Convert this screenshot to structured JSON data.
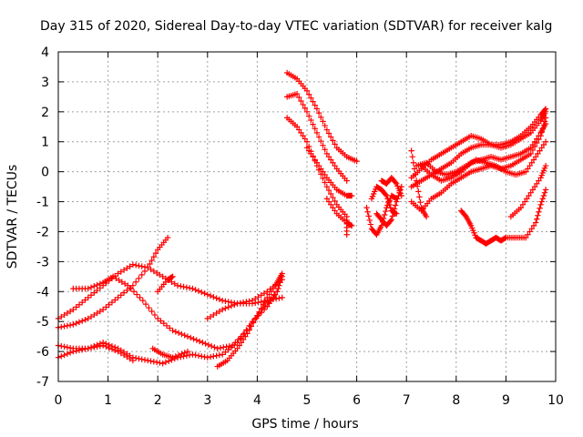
{
  "chart_data": {
    "type": "scatter",
    "title": "Day 315 of 2020, Sidereal Day-to-day VTEC variation (SDTVAR) for receiver kalg",
    "xlabel": "GPS time / hours",
    "ylabel": "SDTVAR / TECUs",
    "xlim": [
      0,
      10
    ],
    "ylim": [
      -7,
      4
    ],
    "xticks": [
      "0",
      "1",
      "2",
      "3",
      "4",
      "5",
      "6",
      "7",
      "8",
      "9",
      "10"
    ],
    "yticks": [
      "-7",
      "-6",
      "-5",
      "-4",
      "-3",
      "-2",
      "-1",
      "0",
      "1",
      "2",
      "3",
      "4"
    ],
    "grid": true,
    "marker": "+",
    "color": "#ff0000",
    "series": [
      {
        "name": "t1",
        "points": [
          [
            0.0,
            -4.9
          ],
          [
            0.3,
            -4.6
          ],
          [
            0.6,
            -4.2
          ],
          [
            0.9,
            -3.8
          ],
          [
            1.2,
            -3.4
          ],
          [
            1.5,
            -3.1
          ],
          [
            1.8,
            -3.2
          ],
          [
            2.1,
            -3.5
          ],
          [
            2.4,
            -3.8
          ],
          [
            2.7,
            -3.9
          ],
          [
            3.0,
            -4.1
          ],
          [
            3.3,
            -4.3
          ],
          [
            3.6,
            -4.4
          ],
          [
            3.9,
            -4.4
          ],
          [
            4.2,
            -4.3
          ],
          [
            4.5,
            -4.2
          ]
        ]
      },
      {
        "name": "t2",
        "points": [
          [
            0.0,
            -5.2
          ],
          [
            0.3,
            -5.1
          ],
          [
            0.6,
            -4.9
          ],
          [
            0.9,
            -4.6
          ],
          [
            1.2,
            -4.2
          ],
          [
            1.5,
            -3.8
          ],
          [
            1.8,
            -3.2
          ],
          [
            2.0,
            -2.6
          ],
          [
            2.2,
            -2.2
          ]
        ]
      },
      {
        "name": "t3",
        "points": [
          [
            0.3,
            -3.9
          ],
          [
            0.6,
            -3.9
          ],
          [
            0.9,
            -3.7
          ],
          [
            1.1,
            -3.5
          ],
          [
            1.4,
            -3.8
          ],
          [
            1.7,
            -4.3
          ],
          [
            2.0,
            -4.9
          ],
          [
            2.3,
            -5.3
          ],
          [
            2.6,
            -5.5
          ],
          [
            2.9,
            -5.7
          ],
          [
            3.2,
            -5.9
          ],
          [
            3.5,
            -5.8
          ],
          [
            3.8,
            -5.3
          ],
          [
            4.1,
            -4.6
          ],
          [
            4.4,
            -4.0
          ],
          [
            4.5,
            -3.5
          ]
        ]
      },
      {
        "name": "t4",
        "points": [
          [
            0.0,
            -5.8
          ],
          [
            0.3,
            -5.9
          ],
          [
            0.6,
            -5.9
          ],
          [
            0.9,
            -5.7
          ],
          [
            1.2,
            -5.9
          ],
          [
            1.5,
            -6.2
          ],
          [
            1.8,
            -6.3
          ],
          [
            2.1,
            -6.4
          ],
          [
            2.4,
            -6.2
          ],
          [
            2.7,
            -6.1
          ],
          [
            3.0,
            -6.2
          ],
          [
            3.3,
            -6.1
          ],
          [
            3.6,
            -5.7
          ],
          [
            3.9,
            -5.0
          ],
          [
            4.2,
            -4.5
          ],
          [
            4.4,
            -4.0
          ]
        ]
      },
      {
        "name": "t5",
        "points": [
          [
            0.0,
            -6.2
          ],
          [
            0.3,
            -6.0
          ],
          [
            0.6,
            -5.9
          ],
          [
            0.9,
            -5.8
          ],
          [
            1.2,
            -6.0
          ],
          [
            1.5,
            -6.3
          ]
        ]
      },
      {
        "name": "t6",
        "points": [
          [
            1.9,
            -5.9
          ],
          [
            2.1,
            -6.1
          ],
          [
            2.3,
            -6.2
          ],
          [
            2.6,
            -6.0
          ]
        ]
      },
      {
        "name": "t7",
        "points": [
          [
            3.2,
            -6.5
          ],
          [
            3.4,
            -6.3
          ],
          [
            3.6,
            -5.9
          ],
          [
            3.8,
            -5.4
          ],
          [
            4.0,
            -4.8
          ],
          [
            4.2,
            -4.2
          ],
          [
            4.4,
            -3.7
          ],
          [
            4.5,
            -3.4
          ]
        ]
      },
      {
        "name": "t8",
        "points": [
          [
            2.0,
            -4.0
          ],
          [
            2.2,
            -3.6
          ],
          [
            2.3,
            -3.5
          ]
        ]
      },
      {
        "name": "t9",
        "points": [
          [
            3.0,
            -4.9
          ],
          [
            3.3,
            -4.6
          ],
          [
            3.6,
            -4.4
          ],
          [
            3.9,
            -4.3
          ],
          [
            4.2,
            -4.0
          ],
          [
            4.5,
            -3.6
          ]
        ]
      },
      {
        "name": "t10",
        "points": [
          [
            4.6,
            3.3
          ],
          [
            4.8,
            3.1
          ],
          [
            5.0,
            2.7
          ],
          [
            5.2,
            2.1
          ],
          [
            5.4,
            1.4
          ],
          [
            5.6,
            0.8
          ],
          [
            5.8,
            0.5
          ],
          [
            6.0,
            0.35
          ]
        ]
      },
      {
        "name": "t11",
        "points": [
          [
            4.6,
            2.5
          ],
          [
            4.8,
            2.6
          ],
          [
            5.0,
            2.0
          ],
          [
            5.2,
            1.3
          ],
          [
            5.4,
            0.6
          ],
          [
            5.6,
            0.1
          ],
          [
            5.8,
            -0.3
          ]
        ]
      },
      {
        "name": "t12",
        "points": [
          [
            4.6,
            1.8
          ],
          [
            4.8,
            1.5
          ],
          [
            5.0,
            1.0
          ],
          [
            5.2,
            0.2
          ],
          [
            5.4,
            -0.5
          ],
          [
            5.6,
            -1.1
          ],
          [
            5.8,
            -1.5
          ],
          [
            5.8,
            -2.1
          ]
        ]
      },
      {
        "name": "t13",
        "points": [
          [
            5.0,
            0.8
          ],
          [
            5.2,
            0.3
          ],
          [
            5.4,
            -0.2
          ],
          [
            5.6,
            -0.6
          ],
          [
            5.8,
            -0.8
          ],
          [
            5.9,
            -0.8
          ]
        ]
      },
      {
        "name": "t14",
        "points": [
          [
            5.4,
            -0.9
          ],
          [
            5.6,
            -1.4
          ],
          [
            5.8,
            -1.7
          ],
          [
            5.9,
            -1.8
          ]
        ]
      },
      {
        "name": "t15",
        "points": [
          [
            6.2,
            -1.2
          ],
          [
            6.3,
            -1.9
          ],
          [
            6.4,
            -2.1
          ],
          [
            6.5,
            -1.8
          ],
          [
            6.6,
            -1.2
          ],
          [
            6.7,
            -0.8
          ],
          [
            6.8,
            -0.9
          ]
        ]
      },
      {
        "name": "t16",
        "points": [
          [
            6.3,
            -0.9
          ],
          [
            6.4,
            -0.5
          ],
          [
            6.5,
            -0.6
          ],
          [
            6.6,
            -0.8
          ],
          [
            6.7,
            -1.3
          ],
          [
            6.8,
            -1.4
          ]
        ]
      },
      {
        "name": "t17",
        "points": [
          [
            6.4,
            -1.4
          ],
          [
            6.5,
            -1.6
          ],
          [
            6.6,
            -1.8
          ],
          [
            6.7,
            -1.6
          ],
          [
            6.8,
            -1.0
          ],
          [
            6.9,
            -0.5
          ]
        ]
      },
      {
        "name": "t18",
        "points": [
          [
            6.5,
            -0.3
          ],
          [
            6.6,
            -0.4
          ],
          [
            6.7,
            -0.2
          ],
          [
            6.8,
            -0.4
          ],
          [
            6.9,
            -0.8
          ]
        ]
      },
      {
        "name": "t19",
        "points": [
          [
            7.1,
            0.7
          ],
          [
            7.2,
            -0.3
          ],
          [
            7.3,
            -1.2
          ],
          [
            7.4,
            -1.5
          ]
        ]
      },
      {
        "name": "t20",
        "points": [
          [
            7.1,
            -1.0
          ],
          [
            7.3,
            -1.3
          ],
          [
            7.5,
            -0.9
          ],
          [
            7.7,
            -0.7
          ],
          [
            7.9,
            -0.4
          ],
          [
            8.1,
            -0.2
          ],
          [
            8.3,
            0.0
          ],
          [
            8.5,
            0.1
          ],
          [
            8.7,
            0.2
          ],
          [
            8.9,
            0.1
          ],
          [
            9.1,
            0.2
          ],
          [
            9.3,
            0.4
          ],
          [
            9.5,
            0.6
          ],
          [
            9.7,
            1.2
          ],
          [
            9.8,
            1.8
          ]
        ]
      },
      {
        "name": "t21",
        "points": [
          [
            7.1,
            -0.5
          ],
          [
            7.3,
            -0.3
          ],
          [
            7.5,
            -0.1
          ],
          [
            7.7,
            0.1
          ],
          [
            7.9,
            0.3
          ],
          [
            8.1,
            0.6
          ],
          [
            8.3,
            0.8
          ],
          [
            8.5,
            0.9
          ],
          [
            8.7,
            0.9
          ],
          [
            8.9,
            0.8
          ],
          [
            9.1,
            0.9
          ],
          [
            9.3,
            1.1
          ],
          [
            9.5,
            1.3
          ],
          [
            9.7,
            1.7
          ],
          [
            9.8,
            2.0
          ]
        ]
      },
      {
        "name": "t22",
        "points": [
          [
            7.1,
            -0.2
          ],
          [
            7.3,
            0.1
          ],
          [
            7.5,
            0.4
          ],
          [
            7.7,
            0.6
          ],
          [
            7.9,
            0.8
          ],
          [
            8.1,
            1.0
          ],
          [
            8.3,
            1.2
          ],
          [
            8.5,
            1.1
          ],
          [
            8.7,
            0.9
          ],
          [
            8.9,
            0.9
          ],
          [
            9.1,
            1.0
          ],
          [
            9.3,
            1.2
          ],
          [
            9.5,
            1.5
          ],
          [
            9.7,
            1.9
          ],
          [
            9.8,
            2.1
          ]
        ]
      },
      {
        "name": "t23",
        "points": [
          [
            7.2,
            0.2
          ],
          [
            7.4,
            0.3
          ],
          [
            7.6,
            0.0
          ],
          [
            7.8,
            -0.1
          ],
          [
            8.0,
            0.0
          ],
          [
            8.2,
            0.2
          ],
          [
            8.4,
            0.4
          ],
          [
            8.6,
            0.3
          ],
          [
            8.8,
            0.2
          ],
          [
            9.0,
            0.0
          ],
          [
            9.2,
            -0.1
          ],
          [
            9.4,
            0.0
          ],
          [
            9.6,
            0.5
          ],
          [
            9.8,
            1.0
          ]
        ]
      },
      {
        "name": "t24",
        "points": [
          [
            7.3,
            0.2
          ],
          [
            7.5,
            -0.1
          ],
          [
            7.7,
            -0.3
          ],
          [
            7.9,
            -0.2
          ],
          [
            8.1,
            0.0
          ],
          [
            8.3,
            0.3
          ],
          [
            8.5,
            0.4
          ],
          [
            8.7,
            0.5
          ],
          [
            8.9,
            0.4
          ],
          [
            9.1,
            0.5
          ],
          [
            9.3,
            0.6
          ],
          [
            9.5,
            0.8
          ],
          [
            9.7,
            1.3
          ],
          [
            9.8,
            1.6
          ]
        ]
      },
      {
        "name": "t25",
        "points": [
          [
            8.1,
            -1.3
          ],
          [
            8.2,
            -1.5
          ],
          [
            8.3,
            -1.8
          ],
          [
            8.4,
            -2.2
          ],
          [
            8.5,
            -2.3
          ],
          [
            8.6,
            -2.4
          ],
          [
            8.7,
            -2.3
          ],
          [
            8.8,
            -2.2
          ],
          [
            8.9,
            -2.3
          ],
          [
            9.0,
            -2.2
          ],
          [
            9.2,
            -2.2
          ],
          [
            9.4,
            -2.2
          ],
          [
            9.6,
            -1.7
          ],
          [
            9.7,
            -1.1
          ],
          [
            9.8,
            -0.6
          ]
        ]
      },
      {
        "name": "t26",
        "points": [
          [
            9.1,
            -1.5
          ],
          [
            9.3,
            -1.2
          ],
          [
            9.5,
            -0.7
          ],
          [
            9.7,
            -0.2
          ],
          [
            9.8,
            0.2
          ]
        ]
      }
    ]
  }
}
